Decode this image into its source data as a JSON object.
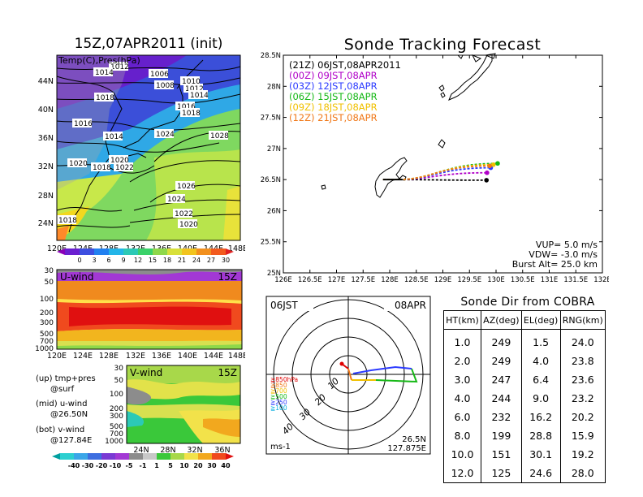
{
  "map_panel": {
    "title": "15Z,07APR2011 (init)",
    "inner_label": "Temp(C),Pres(hPa)",
    "lat_ticks": [
      "44N",
      "40N",
      "36N",
      "32N",
      "28N",
      "24N"
    ],
    "lon_ticks": [
      "120E",
      "124E",
      "128E",
      "132E",
      "136E",
      "140E",
      "144E",
      "148E"
    ],
    "isobar_labels": [
      "1012",
      "1014",
      "1006",
      "1008",
      "1010",
      "1012",
      "1014",
      "1018",
      "1016",
      "1018",
      "1016",
      "1014",
      "1024",
      "1028",
      "1020",
      "1018",
      "1020",
      "1022",
      "1026",
      "1024",
      "1022",
      "1020",
      "1018"
    ],
    "colorbar_ticks": [
      "0",
      "3",
      "6",
      "9",
      "12",
      "15",
      "18",
      "21",
      "24",
      "27",
      "30"
    ]
  },
  "u_wind_panel": {
    "title": "U-wind",
    "time": "15Z",
    "p_ticks": [
      "30",
      "50",
      "100",
      "200",
      "300",
      "500",
      "700",
      "1000"
    ],
    "lon_ticks": [
      "120E",
      "124E",
      "128E",
      "132E",
      "136E",
      "140E",
      "144E",
      "148E"
    ]
  },
  "v_wind_panel": {
    "title": "V-wind",
    "time": "15Z",
    "p_ticks": [
      "30",
      "50",
      "100",
      "200",
      "300",
      "500",
      "700",
      "1000"
    ],
    "lat_ticks": [
      "24N",
      "28N",
      "32N",
      "36N"
    ]
  },
  "legend_notes": [
    {
      "line1": "(up) tmp+pres",
      "line2": "@surf"
    },
    {
      "line1": "(mid) u-wind",
      "line2": "@26.50N"
    },
    {
      "line1": "(bot) v-wind",
      "line2": "@127.84E"
    }
  ],
  "wind_colorbar_ticks": [
    "-40",
    "-30",
    "-20",
    "-10",
    "-5",
    "-1",
    "1",
    "5",
    "10",
    "20",
    "30",
    "40"
  ],
  "track_panel": {
    "title": "Sonde Tracking Forecast",
    "legend": [
      {
        "text": "(21Z) 06JST,08APR2011",
        "color": "#000000"
      },
      {
        "text": "(00Z) 09JST,08APR",
        "color": "#b000c8"
      },
      {
        "text": "(03Z) 12JST,08APR",
        "color": "#2d3cff"
      },
      {
        "text": "(06Z) 15JST,08APR",
        "color": "#16b816"
      },
      {
        "text": "(09Z) 18JST,08APR",
        "color": "#f0c000"
      },
      {
        "text": "(12Z) 21JST,08APR",
        "color": "#f07818"
      }
    ],
    "params": [
      "VUP=  5.0 m/s",
      "VDW= -3.0 m/s",
      "Burst Alt= 25.0 km"
    ]
  },
  "chart_data": {
    "type": "line",
    "title": "Sonde Tracking Forecast",
    "xlim": [
      126.0,
      132.0
    ],
    "ylim": [
      25.0,
      28.5
    ],
    "x_ticks": [
      "126E",
      "126.5E",
      "127E",
      "127.5E",
      "128E",
      "128.5E",
      "129E",
      "129.5E",
      "130E",
      "130.5E",
      "131E",
      "131.5E",
      "132E"
    ],
    "y_ticks": [
      "25N",
      "25.5N",
      "26N",
      "26.5N",
      "27N",
      "27.5N",
      "28N",
      "28.5N"
    ],
    "launch": {
      "lat": 26.5,
      "lon": 127.875
    },
    "series": [
      {
        "name": "(21Z) 06JST,08APR2011",
        "color": "#000000",
        "end": [
          129.82,
          26.49
        ]
      },
      {
        "name": "(00Z) 09JST,08APR",
        "color": "#b000c8",
        "end": [
          129.83,
          26.61
        ]
      },
      {
        "name": "(03Z) 12JST,08APR",
        "color": "#2d3cff",
        "end": [
          129.9,
          26.69
        ]
      },
      {
        "name": "(06Z) 15JST,08APR",
        "color": "#16b816",
        "end": [
          130.03,
          26.76
        ]
      },
      {
        "name": "(09Z) 18JST,08APR",
        "color": "#f0c000",
        "end": [
          129.95,
          26.74
        ]
      },
      {
        "name": "(12Z) 21JST,08APR",
        "color": "#f07818",
        "end": [
          129.88,
          26.72
        ]
      }
    ]
  },
  "polar_panel": {
    "time": "06JST",
    "date": "08APR",
    "pressure_labels": [
      "≧850hPa",
      "≧850",
      "≧700",
      "≧500",
      "≧250",
      "≧100"
    ],
    "pressure_colors": [
      "#e00000",
      "#f07818",
      "#f0c000",
      "#16b816",
      "#2d3cff",
      "#00aadd"
    ],
    "ring_labels": [
      "10",
      "20",
      "30",
      "40"
    ],
    "units": "ms-1",
    "loc_lat": "26.5N",
    "loc_lon": "127.875E"
  },
  "sonde_dir": {
    "title": "Sonde Dir from COBRA",
    "headers": [
      "HT(km)",
      "AZ(deg)",
      "EL(deg)",
      "RNG(km)"
    ],
    "rows": [
      [
        "1.0",
        "249",
        "1.5",
        "24.0"
      ],
      [
        "2.0",
        "249",
        "4.0",
        "23.8"
      ],
      [
        "3.0",
        "247",
        "6.4",
        "23.6"
      ],
      [
        "4.0",
        "244",
        "9.0",
        "23.2"
      ],
      [
        "6.0",
        "232",
        "16.2",
        "20.2"
      ],
      [
        "8.0",
        "199",
        "28.8",
        "15.9"
      ],
      [
        "10.0",
        "151",
        "30.1",
        "19.2"
      ],
      [
        "12.0",
        "125",
        "24.6",
        "28.0"
      ]
    ]
  }
}
